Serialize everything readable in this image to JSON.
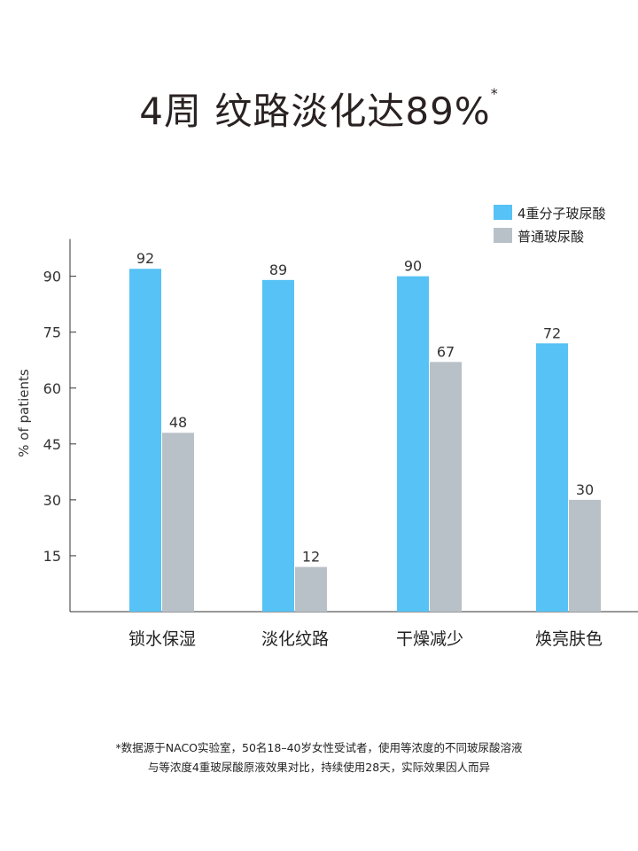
{
  "title": {
    "main": "4周  纹路淡化达89%",
    "mark": "*"
  },
  "chart_data": {
    "type": "bar",
    "title": "4周  纹路淡化达89%",
    "ylabel": "% of patients",
    "xlabel": "",
    "ylim": [
      0,
      100
    ],
    "yticks": [
      15,
      30,
      45,
      60,
      75,
      90
    ],
    "grid": false,
    "legend_position": "top-right",
    "categories": [
      "锁水保湿",
      "淡化纹路",
      "干燥减少",
      "焕亮肤色"
    ],
    "series": [
      {
        "name": "4重分子玻尿酸",
        "color": "#56C2F5",
        "values": [
          92,
          89,
          90,
          72
        ]
      },
      {
        "name": "普通玻尿酸",
        "color": "#B9C1C8",
        "values": [
          48,
          12,
          67,
          30
        ]
      }
    ]
  },
  "footnote": {
    "line1": "*数据源于NACO实验室，50名18–40岁女性受试者，使用等浓度的不同玻尿酸溶液",
    "line2": "与等浓度4重玻尿酸原液效果对比，持续使用28天，实际效果因人而异"
  }
}
